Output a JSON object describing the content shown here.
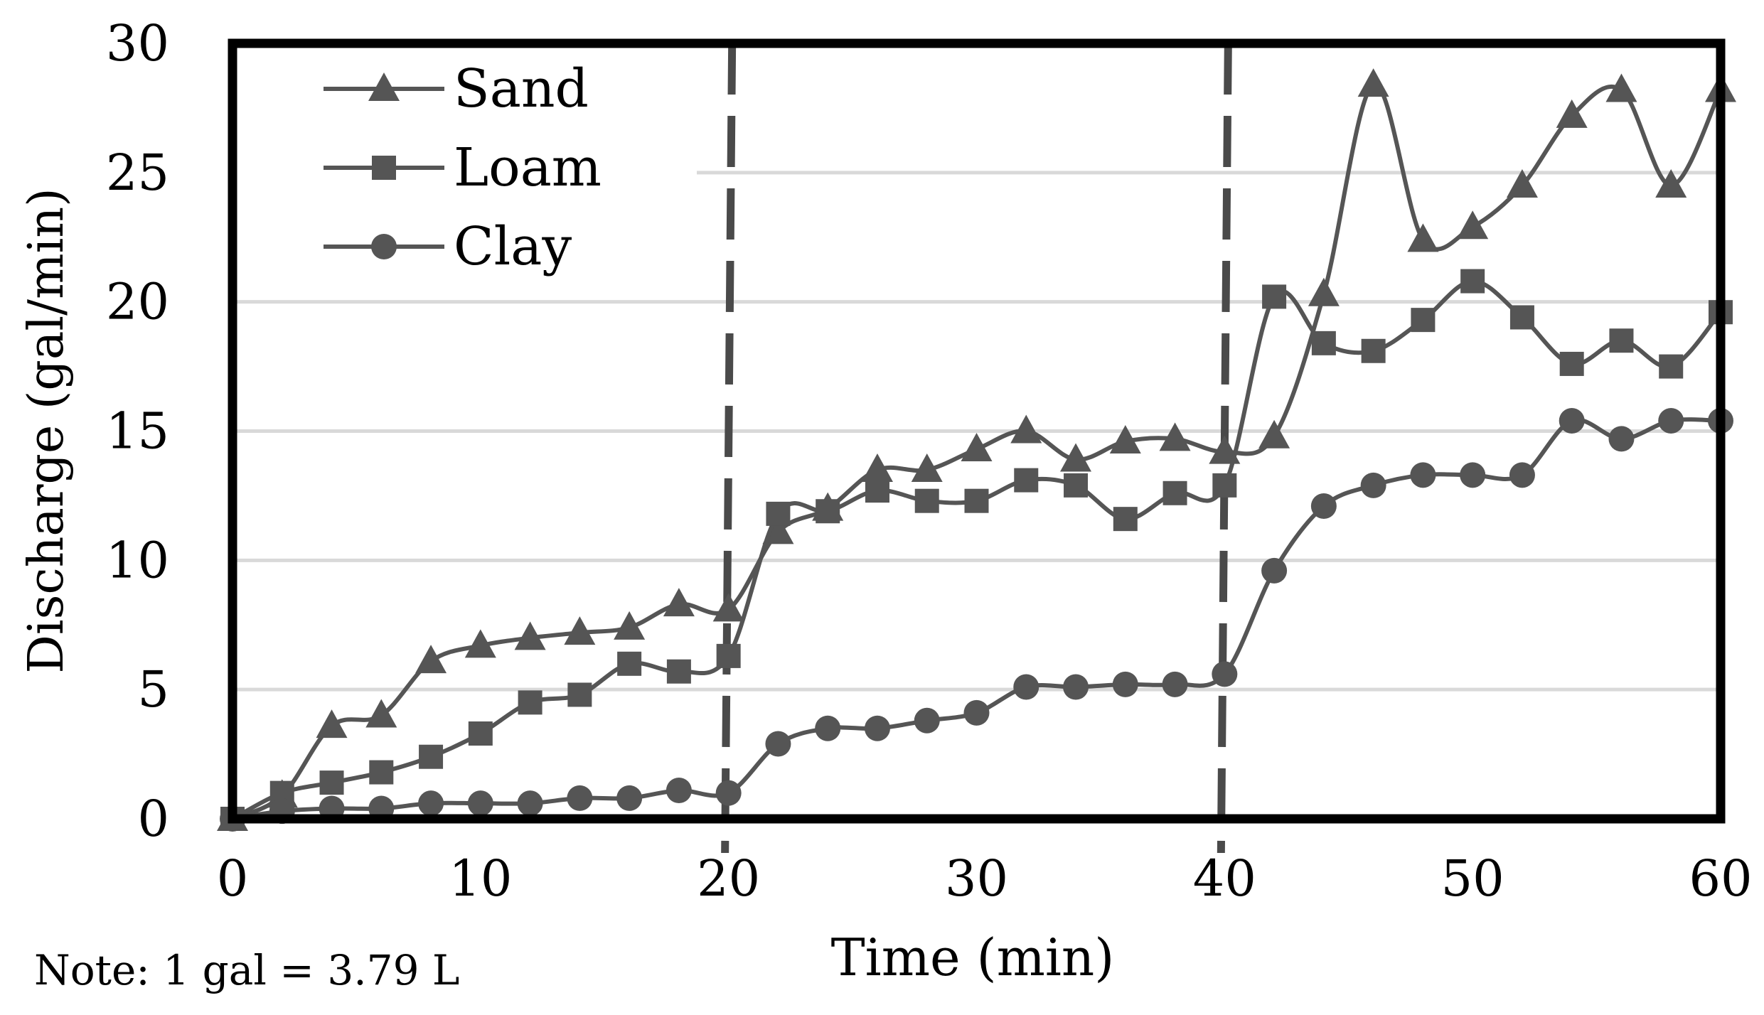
{
  "chart_data": {
    "type": "line",
    "title": "",
    "xlabel": "Time (min)",
    "ylabel": "Discharge (gal/min)",
    "xlim": [
      0,
      60
    ],
    "ylim": [
      0,
      30
    ],
    "xticks": [
      0,
      10,
      20,
      30,
      40,
      50,
      60
    ],
    "yticks": [
      0,
      5,
      10,
      15,
      20,
      25,
      30
    ],
    "grid": "horizontal",
    "legend_position": "top-left",
    "vertical_markers": [
      20,
      40
    ],
    "note": "Note: 1 gal = 3.79 L",
    "series": [
      {
        "name": "Sand",
        "marker": "triangle",
        "x": [
          0,
          2,
          4,
          6,
          8,
          10,
          12,
          14,
          16,
          18,
          20,
          22,
          24,
          26,
          28,
          30,
          32,
          34,
          36,
          38,
          40,
          42,
          44,
          46,
          48,
          50,
          52,
          54,
          56,
          58,
          60
        ],
        "values": [
          0,
          0.9,
          3.6,
          4.0,
          6.1,
          6.7,
          7.0,
          7.2,
          7.4,
          8.3,
          8.1,
          11.1,
          12.0,
          13.5,
          13.5,
          14.3,
          15.0,
          13.9,
          14.6,
          14.7,
          14.2,
          14.8,
          20.3,
          28.4,
          22.4,
          22.9,
          24.5,
          27.2,
          28.2,
          24.5,
          28.2
        ]
      },
      {
        "name": "Loam",
        "marker": "square",
        "x": [
          0,
          2,
          4,
          6,
          8,
          10,
          12,
          14,
          16,
          18,
          20,
          22,
          24,
          26,
          28,
          30,
          32,
          34,
          36,
          38,
          40,
          42,
          44,
          46,
          48,
          50,
          52,
          54,
          56,
          58,
          60
        ],
        "values": [
          0,
          1.0,
          1.4,
          1.8,
          2.4,
          3.3,
          4.5,
          4.8,
          6.0,
          5.7,
          6.3,
          11.8,
          11.9,
          12.7,
          12.3,
          12.3,
          13.1,
          12.9,
          11.6,
          12.6,
          12.9,
          20.2,
          18.4,
          18.1,
          19.3,
          20.8,
          19.4,
          17.6,
          18.5,
          17.5,
          19.6
        ]
      },
      {
        "name": "Clay",
        "marker": "circle",
        "x": [
          0,
          2,
          4,
          6,
          8,
          10,
          12,
          14,
          16,
          18,
          20,
          22,
          24,
          26,
          28,
          30,
          32,
          34,
          36,
          38,
          40,
          42,
          44,
          46,
          48,
          50,
          52,
          54,
          56,
          58,
          60
        ],
        "values": [
          0,
          0.3,
          0.4,
          0.4,
          0.6,
          0.6,
          0.6,
          0.8,
          0.8,
          1.1,
          1.0,
          2.9,
          3.5,
          3.5,
          3.8,
          4.1,
          5.1,
          5.1,
          5.2,
          5.2,
          5.6,
          9.6,
          12.1,
          12.9,
          13.3,
          13.3,
          13.3,
          15.4,
          14.7,
          15.4,
          15.4
        ]
      }
    ]
  }
}
